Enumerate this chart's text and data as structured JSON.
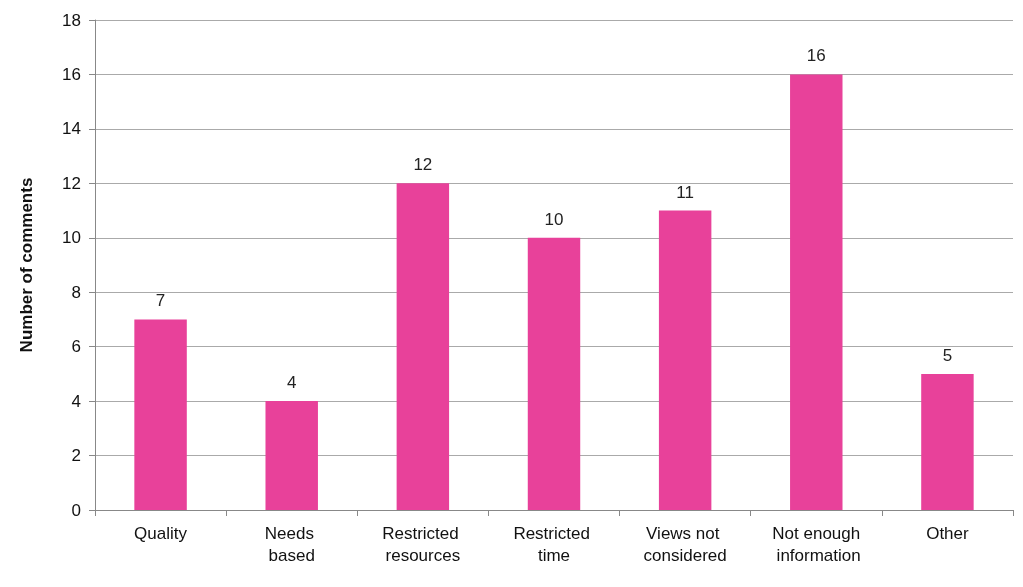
{
  "chart_data": {
    "type": "bar",
    "ylabel": "Number of comments",
    "categories": [
      "Quality",
      "Needs based",
      "Restricted resources",
      "Restricted time",
      "Views not considered",
      "Not enough information",
      "Other"
    ],
    "values": [
      7,
      4,
      12,
      10,
      11,
      16,
      5
    ],
    "color": "#e8419a",
    "ylim": [
      0,
      18
    ],
    "yticks": [
      0,
      2,
      4,
      6,
      8,
      10,
      12,
      14,
      16,
      18
    ],
    "grid": "y",
    "data_labels": true
  }
}
